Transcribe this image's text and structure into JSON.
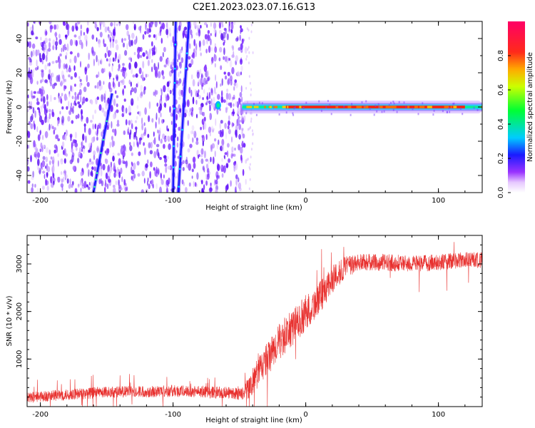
{
  "title": "C2E1.2023.023.07.16.G13",
  "colors": {
    "snr_line": "#e8312f",
    "axis": "#000000"
  },
  "chart_data": [
    {
      "type": "heatmap",
      "xlabel": "Height of straight line (km)",
      "ylabel": "Frequency (Hz)",
      "xlim": [
        -210,
        133
      ],
      "ylim": [
        -50,
        50
      ],
      "xticks": [
        -200,
        -100,
        0,
        100
      ],
      "yticks": [
        -40,
        -20,
        0,
        20,
        40
      ],
      "colorbar": {
        "label": "Normalized spectral amplitude",
        "range": [
          0,
          1
        ],
        "ticks": [
          "0.0",
          "0.2",
          "0.4",
          "0.6",
          "0.8"
        ],
        "colormap": "rainbow (white-purple-blue-cyan-green-yellow-red-magenta)"
      },
      "noise_region_x": [
        -210,
        -45
      ],
      "carrier": {
        "x_start": -48,
        "x_end": 133,
        "frequency": 0,
        "amplitude": 0.85
      },
      "streaks": [
        {
          "x_top": -146,
          "y_top": 8,
          "x_bottom": -160,
          "y_bottom": -50
        },
        {
          "x_top": -98,
          "y_top": 50,
          "x_bottom": -100,
          "y_bottom": -50
        },
        {
          "x_top": -88,
          "y_top": 50,
          "x_bottom": -96,
          "y_bottom": -50
        }
      ]
    },
    {
      "type": "line",
      "xlabel": "Height of straight line (km)",
      "ylabel": "SNR (10 * v/v)",
      "xlim": [
        -210,
        133
      ],
      "ylim": [
        0,
        3600
      ],
      "xticks": [
        -200,
        -100,
        0,
        100
      ],
      "yticks": [
        1000,
        2000,
        3000
      ],
      "series": [
        {
          "name": "",
          "trend": {
            "x": [
              -210,
              -180,
              -150,
              -120,
              -100,
              -80,
              -60,
              -48,
              -42,
              -35,
              -30,
              -20,
              -10,
              0,
              10,
              20,
              30,
              40,
              60,
              80,
              100,
              120,
              133
            ],
            "y": [
              200,
              260,
              320,
              330,
              340,
              330,
              300,
              280,
              450,
              800,
              1000,
              1400,
              1700,
              2000,
              2300,
              2700,
              2950,
              3050,
              3050,
              3020,
              3050,
              3100,
              3100
            ]
          },
          "noise": {
            "x": [
              -210,
              -48,
              -40,
              -20,
              0,
              20,
              40,
              133
            ],
            "amplitude": [
              180,
              200,
              450,
              600,
              600,
              450,
              280,
              260
            ]
          }
        }
      ]
    }
  ]
}
